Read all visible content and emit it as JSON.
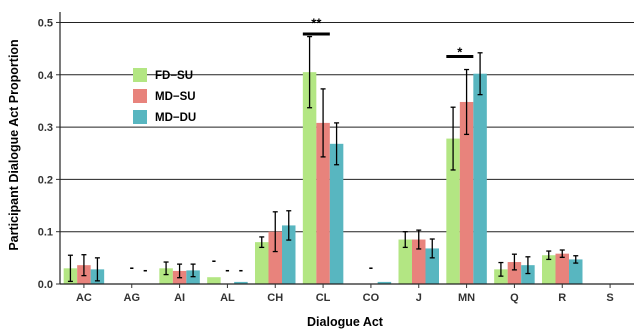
{
  "chart_data": {
    "type": "bar",
    "xlabel": "Dialogue Act",
    "ylabel": "Participant Dialogue Act Proportion",
    "ylim": [
      0,
      0.52
    ],
    "yticks": [
      "0.0",
      "0.1",
      "0.2",
      "0.3",
      "0.4",
      "0.5"
    ],
    "grid": "horizontal major",
    "legend_position": "top-left",
    "categories": [
      "AC",
      "AG",
      "AI",
      "AL",
      "CH",
      "CL",
      "CO",
      "J",
      "MN",
      "Q",
      "R",
      "S"
    ],
    "series": [
      {
        "name": "FD−SU",
        "color": "#b3e683",
        "values": [
          0.03,
          0.0,
          0.03,
          0.013,
          0.08,
          0.405,
          0.0,
          0.085,
          0.278,
          0.028,
          0.055,
          0.0
        ],
        "errors": [
          0.025,
          0,
          0.012,
          0,
          0.01,
          0.068,
          0,
          0.015,
          0.06,
          0.013,
          0.008,
          0
        ]
      },
      {
        "name": "MD−SU",
        "color": "#e8837c",
        "values": [
          0.036,
          0.0,
          0.025,
          0.0,
          0.1,
          0.308,
          0.0,
          0.085,
          0.348,
          0.042,
          0.058,
          0.0
        ],
        "errors": [
          0.02,
          0,
          0.013,
          0,
          0.038,
          0.065,
          0,
          0.018,
          0.062,
          0.015,
          0.007,
          0
        ]
      },
      {
        "name": "MD−DU",
        "color": "#58b6c0",
        "values": [
          0.028,
          0.0,
          0.026,
          0.004,
          0.112,
          0.268,
          0.004,
          0.068,
          0.402,
          0.036,
          0.047,
          0.0
        ],
        "errors": [
          0.022,
          0,
          0.012,
          0,
          0.028,
          0.04,
          0,
          0.018,
          0.04,
          0.016,
          0.007,
          0
        ]
      }
    ],
    "annotations": [
      {
        "text": "**",
        "category": "CL",
        "y": 0.49
      },
      {
        "text": "*",
        "category": "MN",
        "y": 0.435
      },
      {
        "text": "-",
        "category": "AG",
        "series": 1,
        "y": 0.024
      },
      {
        "text": "-",
        "category": "AG",
        "series": 2,
        "y": 0.019
      },
      {
        "text": "-",
        "category": "AL",
        "series": 0,
        "y": 0.037
      },
      {
        "text": "-",
        "category": "AL",
        "series": 1,
        "y": 0.019
      },
      {
        "text": "-",
        "category": "AL",
        "series": 2,
        "y": 0.019
      },
      {
        "text": "-",
        "category": "CO",
        "series": 1,
        "y": 0.024
      }
    ],
    "significance_bars": [
      {
        "category": "CL",
        "from_series": 0,
        "to_series": 1,
        "y": 0.478
      },
      {
        "category": "MN",
        "from_series": 0,
        "to_series": 1,
        "y": 0.435
      }
    ]
  }
}
